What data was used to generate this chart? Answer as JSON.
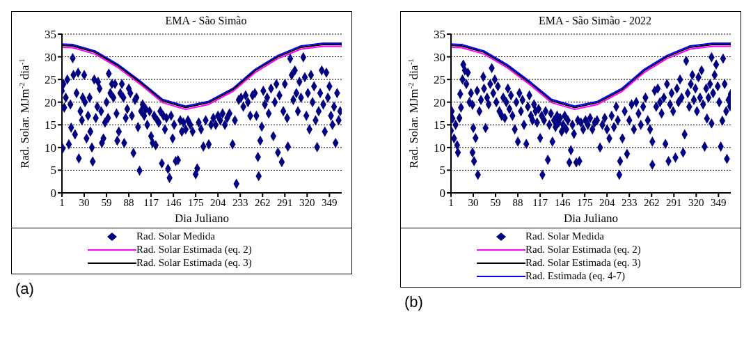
{
  "chart_data": [
    {
      "type": "scatter",
      "title": "EMA - São Simão",
      "xlabel": "Dia Juliano",
      "ylabel": "Rad. Solar. MJm$^{-2}$ dia$^{-1}$",
      "xlim": [
        1,
        365
      ],
      "xticks": [
        1,
        30,
        59,
        88,
        117,
        146,
        175,
        204,
        233,
        262,
        291,
        320,
        349
      ],
      "ylim": [
        0,
        35
      ],
      "yticks": [
        0,
        5,
        10,
        15,
        20,
        25,
        30,
        35
      ],
      "grid": "y",
      "legend": "bottom",
      "line_style": "solid",
      "annotations": [
        "(a)"
      ],
      "series": [
        {
          "name": "Rad. Solar Medida",
          "marker": "diamond",
          "color": "#000080",
          "x": [
            1,
            2,
            3,
            4,
            6,
            8,
            10,
            12,
            13,
            15,
            16,
            18,
            20,
            22,
            23,
            25,
            27,
            28,
            30,
            31,
            33,
            35,
            37,
            38,
            40,
            41,
            43,
            45,
            47,
            48,
            50,
            52,
            53,
            55,
            57,
            59,
            61,
            62,
            64,
            66,
            68,
            70,
            72,
            73,
            75,
            77,
            79,
            81,
            82,
            84,
            86,
            88,
            90,
            92,
            94,
            96,
            98,
            100,
            102,
            104,
            106,
            108,
            110,
            112,
            115,
            117,
            119,
            121,
            123,
            125,
            127,
            129,
            131,
            133,
            135,
            137,
            139,
            141,
            143,
            145,
            147,
            149,
            152,
            155,
            157,
            159,
            162,
            165,
            168,
            171,
            175,
            177,
            179,
            182,
            185,
            188,
            192,
            195,
            198,
            201,
            204,
            207,
            210,
            213,
            216,
            219,
            223,
            226,
            228,
            231,
            234,
            237,
            240,
            243,
            246,
            249,
            252,
            254,
            256,
            257,
            259,
            261,
            263,
            265,
            268,
            270,
            273,
            276,
            278,
            280,
            282,
            284,
            287,
            289,
            291,
            294,
            295,
            298,
            300,
            302,
            304,
            306,
            308,
            310,
            312,
            315,
            317,
            319,
            321,
            323,
            325,
            327,
            329,
            331,
            333,
            335,
            337,
            339,
            341,
            343,
            345,
            347,
            349,
            351,
            353,
            355,
            357,
            359,
            361,
            363
          ],
          "values": [
            22.5,
            9.8,
            24,
            18.8,
            21,
            25,
            10.7,
            19.5,
            14.4,
            29.7,
            26,
            12.9,
            22,
            26.5,
            7.6,
            18,
            16,
            21,
            26,
            20,
            12,
            17,
            21,
            13.5,
            10,
            6.9,
            25,
            16.5,
            19,
            24.5,
            23,
            18,
            11,
            12,
            15.5,
            20,
            16.5,
            26.3,
            22,
            24,
            21,
            24,
            17.5,
            11.5,
            13.5,
            22,
            24,
            21,
            11,
            16.5,
            18.5,
            23,
            22,
            17,
            8.8,
            20.5,
            21,
            14.5,
            4.9,
            18,
            19.5,
            17,
            18.5,
            15,
            18,
            12.5,
            11,
            17,
            10.5,
            16,
            15.5,
            18,
            6.5,
            17,
            14,
            16.5,
            5.3,
            3.3,
            17,
            12,
            15,
            7,
            7.2,
            16,
            13.5,
            15.5,
            14,
            16,
            15,
            13.5,
            4.1,
            5.4,
            15.5,
            14,
            10.2,
            16,
            10.7,
            15,
            16.5,
            15,
            17,
            16,
            17.5,
            15,
            16.5,
            17.5,
            10.7,
            16,
            2,
            20.5,
            21,
            19,
            21.5,
            20,
            17,
            21.5,
            22,
            17,
            7.9,
            3.7,
            11.5,
            14.6,
            22.5,
            19.5,
            21,
            17.5,
            23,
            12.5,
            20,
            24,
            8.9,
            21.5,
            6.8,
            18,
            24,
            16.5,
            10.2,
            29.6,
            26,
            20.5,
            27,
            22,
            18,
            24.5,
            21,
            29.9,
            25.5,
            17,
            22,
            14,
            26,
            20,
            23.5,
            16,
            10.1,
            18,
            22,
            27,
            19.5,
            13.5,
            26.5,
            21,
            23.5,
            17,
            15,
            19,
            11,
            22,
            16,
            18
          ]
        },
        {
          "type": "line",
          "color": "#0000ff",
          "x": [
            1,
            15,
            44,
            74,
            104,
            132,
            162,
            192,
            223,
            252,
            282,
            312,
            341,
            365
          ],
          "values": [
            32.8,
            32.7,
            31.3,
            28.3,
            24.5,
            20.6,
            19.1,
            20.2,
            23.0,
            27.2,
            30.3,
            32.4,
            33.0,
            33.0
          ]
        },
        {
          "type": "line",
          "name": "Rad. Solar Estimada (eq. 2)",
          "color": "#ff00ff",
          "x": [
            1,
            15,
            44,
            74,
            104,
            132,
            162,
            192,
            223,
            252,
            282,
            312,
            341,
            365
          ],
          "values": [
            32.1,
            32.0,
            30.6,
            27.6,
            23.8,
            19.9,
            18.4,
            19.5,
            22.3,
            26.5,
            29.6,
            31.7,
            32.3,
            32.3
          ]
        },
        {
          "type": "line",
          "name": "Rad. Solar Estimada (eq. 3)",
          "color": "#000000",
          "x": [
            1,
            15,
            44,
            74,
            104,
            132,
            162,
            192,
            223,
            252,
            282,
            312,
            341,
            365
          ],
          "values": [
            32.5,
            32.4,
            31.0,
            28.0,
            24.2,
            20.3,
            18.8,
            19.9,
            22.7,
            26.9,
            30.0,
            32.1,
            32.7,
            32.7
          ]
        }
      ]
    },
    {
      "type": "scatter",
      "title": "EMA - São Simão - 2022",
      "xlabel": "Dia Juliano",
      "ylabel": "Rad. Solar. MJm$^{-2}$ dia$^{-1}$",
      "xlim": [
        1,
        365
      ],
      "xticks": [
        1,
        30,
        59,
        88,
        117,
        146,
        175,
        204,
        233,
        262,
        291,
        320,
        349
      ],
      "ylim": [
        0,
        35
      ],
      "yticks": [
        0,
        5,
        10,
        15,
        20,
        25,
        30,
        35
      ],
      "grid": "y",
      "legend": "bottom",
      "line_style": "solid",
      "annotations": [
        "(b)"
      ],
      "series": [
        {
          "name": "Rad. Solar Medida",
          "marker": "diamond",
          "color": "#000080",
          "x": [
            1,
            2,
            3,
            5,
            7,
            9,
            10,
            12,
            13,
            14,
            16,
            17,
            19,
            21,
            23,
            25,
            27,
            29,
            29,
            30,
            31,
            33,
            35,
            36,
            38,
            40,
            43,
            44,
            46,
            48,
            50,
            52,
            54,
            56,
            58,
            60,
            62,
            64,
            67,
            69,
            71,
            73,
            75,
            77,
            79,
            81,
            84,
            86,
            88,
            90,
            92,
            94,
            96,
            99,
            101,
            103,
            105,
            107,
            109,
            111,
            113,
            115,
            117,
            119,
            120,
            122,
            124,
            127,
            129,
            131,
            133,
            135,
            137,
            139,
            141,
            143,
            145,
            147,
            149,
            151,
            153,
            155,
            157,
            159,
            161,
            164,
            166,
            168,
            170,
            173,
            176,
            179,
            182,
            185,
            188,
            191,
            195,
            198,
            201,
            204,
            207,
            210,
            213,
            216,
            218,
            220,
            221,
            224,
            227,
            230,
            233,
            236,
            239,
            242,
            245,
            248,
            251,
            254,
            257,
            260,
            263,
            263,
            266,
            268,
            270,
            273,
            275,
            278,
            280,
            282,
            284,
            286,
            288,
            290,
            293,
            295,
            297,
            299,
            301,
            303,
            305,
            307,
            309,
            311,
            313,
            315,
            317,
            319,
            321,
            323,
            325,
            327,
            329,
            331,
            333,
            334,
            336,
            338,
            340,
            340,
            342,
            344,
            346,
            348,
            350,
            352,
            354,
            355,
            357,
            359,
            360,
            362,
            364,
            365
          ],
          "values": [
            13.7,
            18,
            16.4,
            12,
            15,
            10.5,
            8.9,
            16.5,
            21.8,
            18.8,
            25,
            28.3,
            27,
            24,
            26.5,
            20,
            22,
            19.4,
            8.9,
            14.3,
            7,
            12.1,
            22.5,
            4,
            18,
            20.5,
            25.6,
            23,
            14.3,
            21,
            19.5,
            24,
            27.5,
            22,
            25,
            20,
            23.5,
            18,
            17,
            21,
            16.5,
            20,
            23,
            18.5,
            21.5,
            17,
            14,
            20,
            11.3,
            22,
            18,
            20.5,
            15,
            10.8,
            19,
            21.5,
            17,
            16,
            19.5,
            18,
            15.5,
            18.5,
            12.1,
            17,
            4,
            16,
            18,
            7.3,
            15,
            17.5,
            11.3,
            16,
            14.5,
            17,
            15.5,
            16.5,
            13.5,
            15,
            17,
            14,
            16,
            6.7,
            9.4,
            15,
            13,
            6.7,
            16,
            7,
            15.5,
            14,
            16,
            15,
            16.5,
            14,
            15.5,
            16,
            10,
            15,
            16.5,
            14,
            12,
            17,
            14.5,
            19,
            16,
            4,
            7,
            12,
            18,
            8.6,
            16,
            19.5,
            14,
            20,
            17.5,
            15,
            19,
            21,
            16,
            14,
            6.2,
            11.3,
            22.5,
            19,
            23,
            20,
            17.5,
            21,
            10.8,
            24,
            7,
            19.5,
            22,
            18,
            7.8,
            23,
            20,
            25,
            21,
            8.9,
            12.9,
            29.1,
            22,
            19,
            24,
            26,
            20.5,
            23,
            18,
            25.5,
            21,
            27,
            19.5,
            10.2,
            23,
            16.4,
            21,
            24,
            29.9,
            15.3,
            22,
            26,
            28.3,
            23.5,
            20,
            10.2,
            15.9,
            29.6,
            24,
            18,
            7.5,
            20.5,
            19.1,
            21.8
          ]
        },
        {
          "type": "line",
          "name": "Rad. Solar Estimada (eq. 2)",
          "color": "#ff00ff",
          "x": [
            1,
            15,
            44,
            74,
            104,
            132,
            162,
            192,
            223,
            252,
            282,
            312,
            341,
            365
          ],
          "values": [
            32.1,
            32.0,
            30.6,
            27.6,
            23.8,
            19.9,
            18.4,
            19.5,
            22.3,
            26.5,
            29.6,
            31.7,
            32.3,
            32.3
          ]
        },
        {
          "type": "line",
          "name": "Rad. Solar Estimada (eq. 3)",
          "color": "#000000",
          "x": [
            1,
            15,
            44,
            74,
            104,
            132,
            162,
            192,
            223,
            252,
            282,
            312,
            341,
            365
          ],
          "values": [
            32.5,
            32.4,
            31.0,
            28.0,
            24.2,
            20.3,
            18.8,
            19.9,
            22.7,
            26.9,
            30.0,
            32.1,
            32.7,
            32.7
          ]
        },
        {
          "type": "line",
          "name": "Rad. Estimada (eq. 4-7)",
          "color": "#0000ff",
          "x": [
            1,
            15,
            44,
            74,
            104,
            132,
            162,
            192,
            223,
            252,
            282,
            312,
            341,
            365
          ],
          "values": [
            32.8,
            32.7,
            31.3,
            28.3,
            24.5,
            20.6,
            19.1,
            20.2,
            23.0,
            27.2,
            30.3,
            32.4,
            33.0,
            33.0
          ]
        }
      ]
    }
  ]
}
